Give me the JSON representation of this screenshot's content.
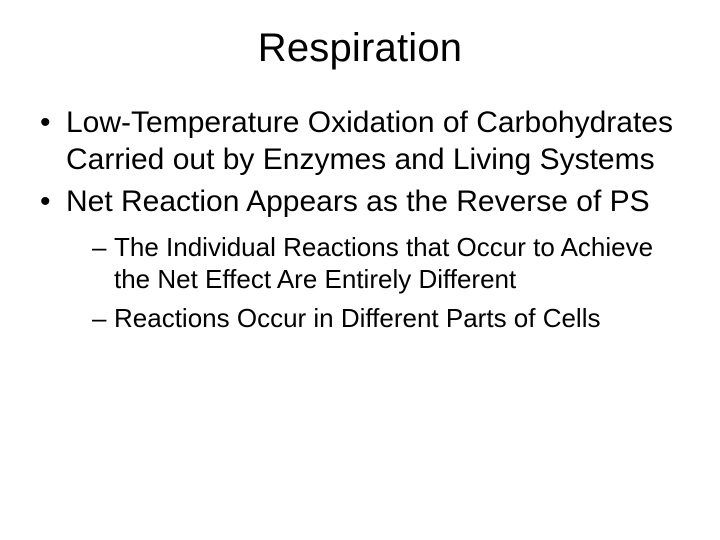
{
  "slide": {
    "title": "Respiration",
    "title_fontsize": 40,
    "background_color": "#ffffff",
    "text_color": "#000000",
    "font_family": "Trebuchet MS",
    "bullets": [
      {
        "text": "Low-Temperature Oxidation of Carbohydrates Carried out by Enzymes and Living Systems",
        "fontsize": 30,
        "sub": []
      },
      {
        "text": "Net Reaction Appears as the Reverse of PS",
        "fontsize": 30,
        "sub": [
          {
            "text": "The Individual Reactions that Occur to Achieve the Net Effect Are Entirely Different",
            "fontsize": 26
          },
          {
            "text": "Reactions Occur in Different Parts of Cells",
            "fontsize": 26
          }
        ]
      }
    ]
  }
}
